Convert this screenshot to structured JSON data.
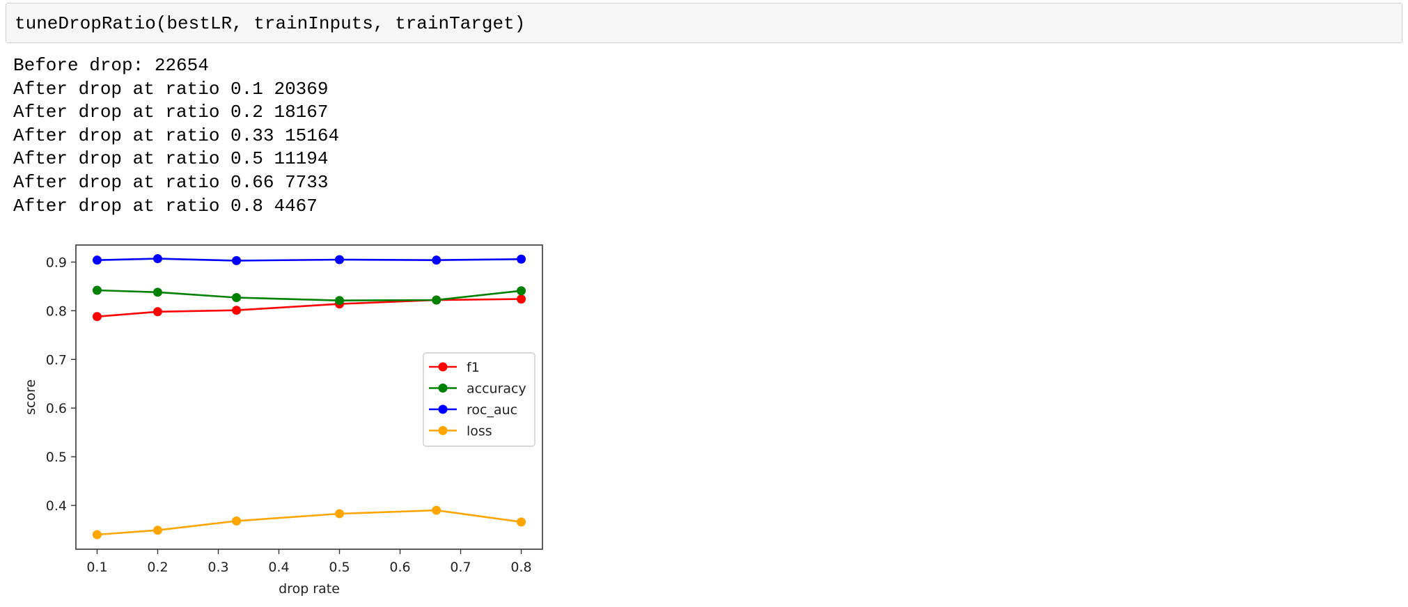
{
  "code_cell": {
    "code": "tuneDropRatio(bestLR, trainInputs, trainTarget)"
  },
  "output": {
    "lines": [
      "Before drop: 22654",
      "After drop at ratio 0.1 20369",
      "After drop at ratio 0.2 18167",
      "After drop at ratio 0.33 15164",
      "After drop at ratio 0.5 11194",
      "After drop at ratio 0.66 7733",
      "After drop at ratio 0.8 4467"
    ]
  },
  "chart_data": {
    "type": "line",
    "xlabel": "drop rate",
    "ylabel": "score",
    "x": [
      0.1,
      0.2,
      0.33,
      0.5,
      0.66,
      0.8
    ],
    "xlim": [
      0.065,
      0.835
    ],
    "ylim": [
      0.31,
      0.935
    ],
    "xticks": [
      0.1,
      0.2,
      0.3,
      0.4,
      0.5,
      0.6,
      0.7,
      0.8
    ],
    "xtick_labels": [
      "0.1",
      "0.2",
      "0.3",
      "0.4",
      "0.5",
      "0.6",
      "0.7",
      "0.8"
    ],
    "yticks": [
      0.4,
      0.5,
      0.6,
      0.7,
      0.8,
      0.9
    ],
    "ytick_labels": [
      "0.4",
      "0.5",
      "0.6",
      "0.7",
      "0.8",
      "0.9"
    ],
    "grid": false,
    "legend_position": "center-right",
    "series": [
      {
        "name": "f1",
        "color": "#ff0000",
        "values": [
          0.788,
          0.798,
          0.801,
          0.814,
          0.822,
          0.824
        ]
      },
      {
        "name": "accuracy",
        "color": "#008000",
        "values": [
          0.842,
          0.838,
          0.827,
          0.821,
          0.822,
          0.841
        ]
      },
      {
        "name": "roc_auc",
        "color": "#0000ff",
        "values": [
          0.904,
          0.907,
          0.903,
          0.905,
          0.904,
          0.906
        ]
      },
      {
        "name": "loss",
        "color": "#ffa500",
        "values": [
          0.34,
          0.349,
          0.368,
          0.383,
          0.39,
          0.366
        ]
      }
    ]
  }
}
